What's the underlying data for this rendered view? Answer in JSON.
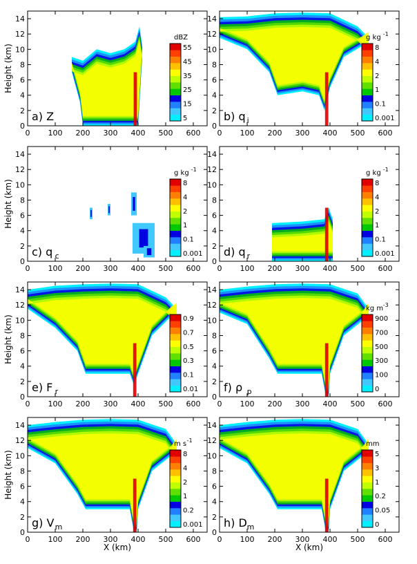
{
  "figure": {
    "ylabel": "Height (km)",
    "xlabel": "X (km)"
  },
  "chart_data": [
    {
      "type": "heatmap",
      "panel": "a) Z",
      "label_main": "a) Z",
      "label_sub": "",
      "units": "dBZ",
      "xlim": [
        0,
        650
      ],
      "ylim": [
        0,
        15
      ],
      "xticks": [
        0,
        100,
        200,
        300,
        400,
        500,
        600
      ],
      "yticks": [
        0,
        2,
        4,
        6,
        8,
        10,
        12,
        14
      ],
      "colorbar_ticks": [
        "5",
        "15",
        "25",
        "35",
        "45",
        "55"
      ],
      "colors": [
        "#00f0ff",
        "#40c8ff",
        "#2080ff",
        "#0000e0",
        "#00c800",
        "#60e000",
        "#c0ff00",
        "#ffff00",
        "#ffc000",
        "#ff8000",
        "#ff4000",
        "#e00000"
      ],
      "field": {
        "x_extent": [
          160,
          415
        ],
        "top_profile": [
          [
            160,
            9.0
          ],
          [
            200,
            8.5
          ],
          [
            250,
            10.0
          ],
          [
            300,
            9.5
          ],
          [
            350,
            10.0
          ],
          [
            390,
            11.0
          ],
          [
            405,
            13.0
          ],
          [
            415,
            10.5
          ]
        ],
        "bottom_profile": [
          [
            160,
            7.0
          ],
          [
            190,
            3.0
          ],
          [
            200,
            0
          ],
          [
            400,
            0
          ],
          [
            410,
            6.0
          ],
          [
            415,
            9.0
          ]
        ],
        "max_level_near_x": 390
      }
    },
    {
      "type": "heatmap",
      "panel": "b) qi",
      "label_main": "b) q",
      "label_sub": "i",
      "units": "g kg",
      "units_exp": "-1",
      "xlim": [
        0,
        650
      ],
      "ylim": [
        0,
        15
      ],
      "xticks": [
        0,
        100,
        200,
        300,
        400,
        500,
        600
      ],
      "yticks": [
        0,
        2,
        4,
        6,
        8,
        10,
        12,
        14
      ],
      "colorbar_ticks": [
        "0.001",
        "0.1",
        "1",
        "2",
        "4",
        "8"
      ],
      "colors": [
        "#00f0ff",
        "#40c8ff",
        "#2080ff",
        "#0000e0",
        "#00c800",
        "#60e000",
        "#c0ff00",
        "#ffff00",
        "#ffc000",
        "#ff8000",
        "#ff4000",
        "#e00000"
      ],
      "field": {
        "x_extent": [
          0,
          540
        ],
        "top_profile": [
          [
            0,
            14.2
          ],
          [
            100,
            14.3
          ],
          [
            200,
            14.7
          ],
          [
            300,
            14.8
          ],
          [
            400,
            14.7
          ],
          [
            500,
            13.0
          ],
          [
            540,
            11.5
          ]
        ],
        "bottom_profile": [
          [
            0,
            11.5
          ],
          [
            100,
            10.0
          ],
          [
            180,
            7.0
          ],
          [
            210,
            4.0
          ],
          [
            300,
            4.5
          ],
          [
            360,
            4.0
          ],
          [
            380,
            2.0
          ],
          [
            400,
            5.0
          ],
          [
            450,
            9.0
          ],
          [
            520,
            10.5
          ],
          [
            540,
            11.0
          ]
        ]
      }
    },
    {
      "type": "heatmap",
      "panel": "c) qc",
      "label_main": "c) q",
      "label_sub": "c",
      "units": "g kg",
      "units_exp": "-1",
      "xlim": [
        0,
        650
      ],
      "ylim": [
        0,
        15
      ],
      "xticks": [
        0,
        100,
        200,
        300,
        400,
        500,
        600
      ],
      "yticks": [
        0,
        2,
        4,
        6,
        8,
        10,
        12,
        14
      ],
      "colorbar_ticks": [
        "0.001",
        "0.1",
        "1",
        "2",
        "4",
        "8"
      ],
      "colors": [
        "#00f0ff",
        "#40c8ff",
        "#2080ff",
        "#0000e0",
        "#00c800",
        "#60e000",
        "#c0ff00",
        "#ffff00",
        "#ffc000",
        "#ff8000",
        "#ff4000",
        "#e00000"
      ],
      "field": {
        "patches": [
          [
            225,
            5.5,
            10,
            1.5
          ],
          [
            290,
            6.0,
            10,
            1.5
          ],
          [
            375,
            6.0,
            20,
            3.0
          ],
          [
            380,
            1.0,
            80,
            4.0
          ],
          [
            420,
            0.5,
            40,
            1.5
          ]
        ]
      }
    },
    {
      "type": "heatmap",
      "panel": "d) qr",
      "label_main": "d) q",
      "label_sub": "r",
      "units": "g kg",
      "units_exp": "-1",
      "xlim": [
        0,
        650
      ],
      "ylim": [
        0,
        15
      ],
      "xticks": [
        0,
        100,
        200,
        300,
        400,
        500,
        600
      ],
      "yticks": [
        0,
        2,
        4,
        6,
        8,
        10,
        12,
        14
      ],
      "colorbar_ticks": [
        "0.001",
        "0.1",
        "1",
        "2",
        "4",
        "8"
      ],
      "colors": [
        "#00f0ff",
        "#40c8ff",
        "#2080ff",
        "#0000e0",
        "#00c800",
        "#60e000",
        "#c0ff00",
        "#ffff00",
        "#ffc000",
        "#ff8000",
        "#ff4000",
        "#e00000"
      ],
      "field": {
        "x_extent": [
          190,
          410
        ],
        "top_profile": [
          [
            190,
            5.0
          ],
          [
            300,
            5.2
          ],
          [
            380,
            5.5
          ],
          [
            395,
            7.0
          ],
          [
            410,
            5.5
          ]
        ],
        "bottom_profile": [
          [
            190,
            0
          ],
          [
            410,
            0
          ]
        ]
      }
    },
    {
      "type": "heatmap",
      "panel": "e) Fr",
      "label_main": "e) F",
      "label_sub": "r",
      "units": "",
      "xlim": [
        0,
        650
      ],
      "ylim": [
        0,
        15
      ],
      "xticks": [
        0,
        100,
        200,
        300,
        400,
        500,
        600
      ],
      "yticks": [
        0,
        2,
        4,
        6,
        8,
        10,
        12,
        14
      ],
      "colorbar_ticks": [
        "0.01",
        "0.1",
        "0.3",
        "0.5",
        "0.7",
        "0.9"
      ],
      "colors": [
        "#00f0ff",
        "#40c8ff",
        "#2080ff",
        "#0000e0",
        "#00c800",
        "#60e000",
        "#c0ff00",
        "#ffff00",
        "#ffc000",
        "#ff8000",
        "#ff4000",
        "#e00000"
      ],
      "field": {
        "x_extent": [
          0,
          540
        ],
        "top_profile": [
          [
            0,
            14.0
          ],
          [
            100,
            14.5
          ],
          [
            200,
            14.7
          ],
          [
            300,
            14.8
          ],
          [
            400,
            14.7
          ],
          [
            500,
            13.0
          ],
          [
            540,
            11.5
          ]
        ],
        "bottom_profile": [
          [
            0,
            11.5
          ],
          [
            100,
            9.0
          ],
          [
            180,
            6.0
          ],
          [
            210,
            3.0
          ],
          [
            300,
            3.0
          ],
          [
            370,
            3.0
          ],
          [
            385,
            1.5
          ],
          [
            400,
            3.0
          ],
          [
            450,
            8.0
          ],
          [
            520,
            10.5
          ],
          [
            540,
            11.0
          ]
        ]
      }
    },
    {
      "type": "heatmap",
      "panel": "f) rho_p",
      "label_main": "f) ρ",
      "label_sub": "p",
      "units": "kg m",
      "units_exp": "-3",
      "xlim": [
        0,
        650
      ],
      "ylim": [
        0,
        15
      ],
      "xticks": [
        0,
        100,
        200,
        300,
        400,
        500,
        600
      ],
      "yticks": [
        0,
        2,
        4,
        6,
        8,
        10,
        12,
        14
      ],
      "colorbar_ticks": [
        "0",
        "100",
        "300",
        "500",
        "700",
        "900"
      ],
      "colors": [
        "#00f0ff",
        "#40c8ff",
        "#2080ff",
        "#0000e0",
        "#00c800",
        "#60e000",
        "#c0ff00",
        "#ffff00",
        "#ffc000",
        "#ff8000",
        "#ff4000",
        "#e00000"
      ],
      "field": {
        "x_extent": [
          0,
          540
        ],
        "top_profile": [
          [
            0,
            14.0
          ],
          [
            100,
            14.4
          ],
          [
            200,
            14.7
          ],
          [
            300,
            14.8
          ],
          [
            400,
            14.7
          ],
          [
            500,
            13.5
          ],
          [
            540,
            11.5
          ]
        ],
        "bottom_profile": [
          [
            0,
            11.0
          ],
          [
            100,
            9.5
          ],
          [
            180,
            5.0
          ],
          [
            210,
            3.0
          ],
          [
            300,
            3.0
          ],
          [
            370,
            3.0
          ],
          [
            385,
            0
          ],
          [
            395,
            0
          ],
          [
            400,
            3.0
          ],
          [
            450,
            8.0
          ],
          [
            520,
            10.0
          ],
          [
            540,
            11.0
          ]
        ]
      }
    },
    {
      "type": "heatmap",
      "panel": "g) Vm",
      "label_main": "g) V",
      "label_sub": "m",
      "units": "m s",
      "units_exp": "-1",
      "xlim": [
        0,
        650
      ],
      "ylim": [
        0,
        15
      ],
      "xticks": [
        0,
        100,
        200,
        300,
        400,
        500,
        600
      ],
      "yticks": [
        0,
        2,
        4,
        6,
        8,
        10,
        12,
        14
      ],
      "colorbar_ticks": [
        "0.001",
        "0.2",
        "1",
        "2",
        "4",
        "8"
      ],
      "colors": [
        "#00f0ff",
        "#40c8ff",
        "#2080ff",
        "#0000e0",
        "#00c800",
        "#60e000",
        "#c0ff00",
        "#ffff00",
        "#ffc000",
        "#ff8000",
        "#ff4000",
        "#e00000"
      ],
      "field": {
        "x_extent": [
          0,
          540
        ],
        "top_profile": [
          [
            0,
            14.0
          ],
          [
            100,
            14.4
          ],
          [
            200,
            14.7
          ],
          [
            300,
            14.8
          ],
          [
            400,
            14.7
          ],
          [
            500,
            13.5
          ],
          [
            540,
            11.5
          ]
        ],
        "bottom_profile": [
          [
            0,
            11.0
          ],
          [
            100,
            9.0
          ],
          [
            180,
            5.0
          ],
          [
            210,
            3.0
          ],
          [
            300,
            3.0
          ],
          [
            370,
            3.0
          ],
          [
            385,
            0
          ],
          [
            395,
            0
          ],
          [
            400,
            3.0
          ],
          [
            450,
            8.0
          ],
          [
            520,
            10.0
          ],
          [
            540,
            11.0
          ]
        ]
      }
    },
    {
      "type": "heatmap",
      "panel": "h) Dm",
      "label_main": "h) D",
      "label_sub": "m",
      "units": "mm",
      "xlim": [
        0,
        650
      ],
      "ylim": [
        0,
        15
      ],
      "xticks": [
        0,
        100,
        200,
        300,
        400,
        500,
        600
      ],
      "yticks": [
        0,
        2,
        4,
        6,
        8,
        10,
        12,
        14
      ],
      "colorbar_ticks": [
        "0",
        "0.05",
        "0.2",
        "1",
        "3",
        "5"
      ],
      "colors": [
        "#00f0ff",
        "#40c8ff",
        "#2080ff",
        "#0000e0",
        "#00c800",
        "#60e000",
        "#c0ff00",
        "#ffff00",
        "#ffc000",
        "#ff8000",
        "#ff4000",
        "#e00000"
      ],
      "field": {
        "x_extent": [
          0,
          540
        ],
        "top_profile": [
          [
            0,
            14.0
          ],
          [
            100,
            14.4
          ],
          [
            200,
            14.7
          ],
          [
            300,
            14.8
          ],
          [
            400,
            14.7
          ],
          [
            500,
            13.5
          ],
          [
            540,
            11.5
          ]
        ],
        "bottom_profile": [
          [
            0,
            11.0
          ],
          [
            100,
            9.0
          ],
          [
            180,
            5.0
          ],
          [
            210,
            3.0
          ],
          [
            300,
            3.0
          ],
          [
            370,
            3.0
          ],
          [
            385,
            0
          ],
          [
            395,
            0
          ],
          [
            400,
            3.0
          ],
          [
            450,
            8.0
          ],
          [
            520,
            10.0
          ],
          [
            540,
            11.0
          ]
        ]
      }
    }
  ]
}
